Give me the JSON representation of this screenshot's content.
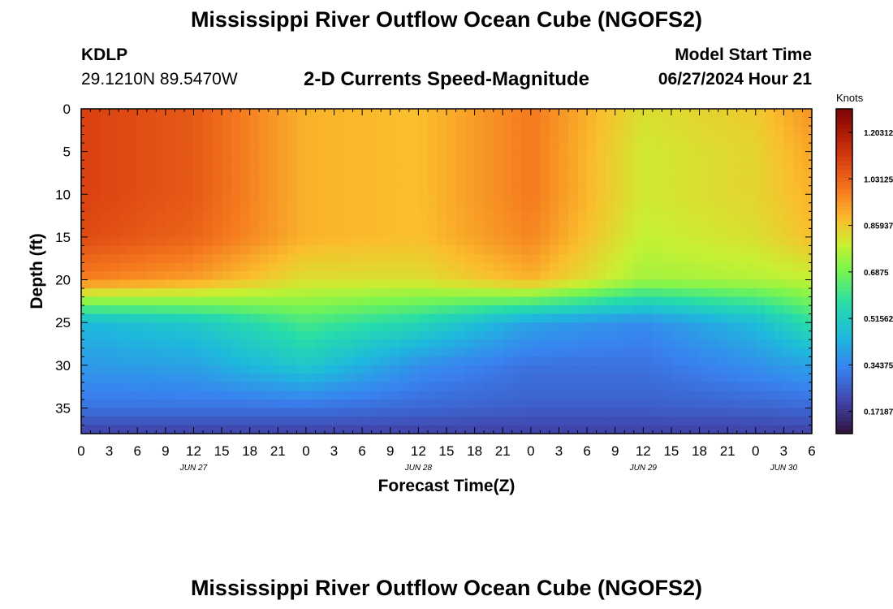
{
  "header": {
    "title": "Mississippi River Outflow Ocean Cube (NGOFS2)",
    "station": "KDLP",
    "coordinates": "29.1210N  89.5470W",
    "product": "2-D Currents Speed-Magnitude",
    "model_start_label": "Model Start Time",
    "model_start_value": "06/27/2024 Hour 21"
  },
  "footer": {
    "title_repeat": "Mississippi River Outflow Ocean Cube (NGOFS2)"
  },
  "colors": {
    "axis": "#000000",
    "background": "#ffffff"
  },
  "chart_data": {
    "type": "heatmap",
    "xlabel": "Forecast Time(Z)",
    "ylabel": "Depth (ft)",
    "x_unit": "hours from 2024-06-27 00Z",
    "xlim": [
      0,
      78
    ],
    "ylim": [
      0,
      38
    ],
    "y_inverted": true,
    "x_ticks": [
      0,
      3,
      6,
      9,
      12,
      15,
      18,
      21,
      24,
      27,
      30,
      33,
      36,
      39,
      42,
      45,
      48,
      51,
      54,
      57,
      60,
      63,
      66,
      69,
      72,
      75,
      78
    ],
    "x_tick_labels": [
      "0",
      "3",
      "6",
      "9",
      "12",
      "15",
      "18",
      "21",
      "0",
      "3",
      "6",
      "9",
      "12",
      "15",
      "18",
      "21",
      "0",
      "3",
      "6",
      "9",
      "12",
      "15",
      "18",
      "21",
      "0",
      "3",
      "6"
    ],
    "day_labels": [
      {
        "label": "JUN 27",
        "at_hour": 12
      },
      {
        "label": "JUN 28",
        "at_hour": 36
      },
      {
        "label": "JUN 29",
        "at_hour": 60
      },
      {
        "label": "JUN 30",
        "at_hour": 75
      }
    ],
    "y_ticks": [
      0,
      5,
      10,
      15,
      20,
      25,
      30,
      35
    ],
    "y_tick_labels": [
      "0",
      "5",
      "10",
      "15",
      "20",
      "25",
      "30",
      "35"
    ],
    "colorbar": {
      "unit": "Knots",
      "min": 0.09,
      "max": 1.29,
      "tick_values": [
        1.203125,
        1.03125,
        0.859375,
        0.6875,
        0.515625,
        0.34375,
        0.171875
      ],
      "tick_labels": [
        "1.203125",
        "1.03125",
        "0.859375",
        "0.6875",
        "0.515625",
        "0.34375",
        "0.171875"
      ]
    },
    "grid": {
      "time_hours": [
        0,
        3,
        6,
        9,
        12,
        15,
        18,
        21,
        24,
        27,
        30,
        33,
        36,
        39,
        42,
        45,
        48,
        51,
        54,
        57,
        60,
        63,
        66,
        69,
        72,
        75,
        78
      ],
      "depth_ft": [
        0,
        5,
        10,
        15,
        20,
        25,
        30,
        35,
        38
      ],
      "speed_knots": [
        [
          1.1,
          1.05,
          0.9,
          0.88,
          0.99,
          0.82,
          0.86,
          0.95
        ],
        [
          1.1,
          1.05,
          0.9,
          0.88,
          0.99,
          0.8,
          0.84,
          0.92
        ],
        [
          1.1,
          1.05,
          0.9,
          0.88,
          0.99,
          0.8,
          0.84,
          0.9
        ],
        [
          1.08,
          1.03,
          0.9,
          0.88,
          0.97,
          0.78,
          0.82,
          0.88
        ],
        [
          0.98,
          0.93,
          0.82,
          0.82,
          0.9,
          0.74,
          0.76,
          0.78
        ],
        [
          0.45,
          0.5,
          0.62,
          0.55,
          0.4,
          0.35,
          0.46,
          0.58
        ],
        [
          0.38,
          0.4,
          0.5,
          0.36,
          0.3,
          0.3,
          0.36,
          0.4
        ],
        [
          0.3,
          0.3,
          0.3,
          0.28,
          0.26,
          0.26,
          0.27,
          0.28
        ],
        [
          0.2,
          0.2,
          0.2,
          0.2,
          0.2,
          0.2,
          0.2,
          0.2
        ]
      ]
    }
  }
}
